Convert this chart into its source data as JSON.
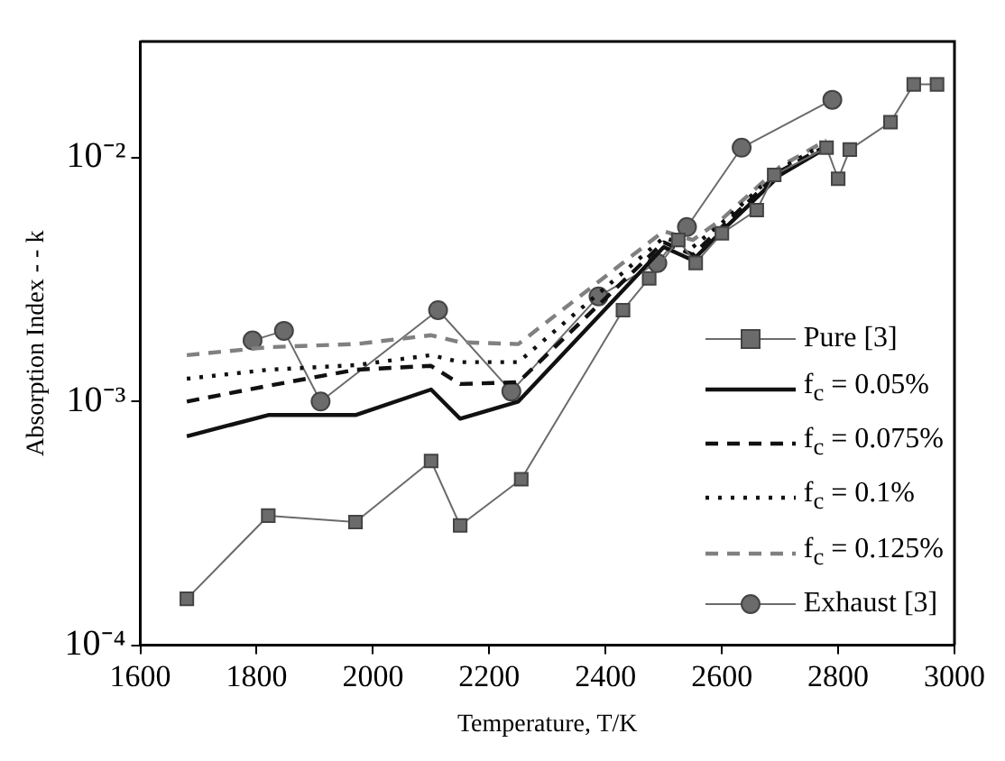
{
  "chart_data": {
    "type": "line",
    "xlabel": "Temperature, T/K",
    "ylabel": "Absorption Index - - k",
    "log": "y",
    "xlim": [
      1600,
      3000
    ],
    "xticks": [
      1600,
      1800,
      2000,
      2200,
      2400,
      2600,
      2800,
      3000
    ],
    "ylim": [
      0.0001,
      0.03
    ],
    "yticks": [
      {
        "value": 0.0001,
        "label": "10⁻⁴"
      },
      {
        "value": 0.001,
        "label": "10⁻³"
      },
      {
        "value": 0.01,
        "label": "10⁻²"
      }
    ],
    "legend": "right",
    "grid": false,
    "series": [
      {
        "name": "Pure [3]",
        "color": "#6b6b6b",
        "marker": "square",
        "line_style": "solid",
        "x": [
          1680,
          1820,
          1970,
          2100,
          2150,
          2255,
          2430,
          2475,
          2525,
          2555,
          2600,
          2660,
          2690,
          2780,
          2800,
          2820,
          2890,
          2930,
          2970
        ],
        "values": [
          0.000155,
          0.00034,
          0.00032,
          0.00057,
          0.00031,
          0.00048,
          0.00237,
          0.0032,
          0.0046,
          0.0037,
          0.0049,
          0.0061,
          0.0085,
          0.011,
          0.0082,
          0.0108,
          0.014,
          0.02,
          0.02
        ]
      },
      {
        "name": "f$_{c}$ = 0.05%",
        "color": "#111111",
        "marker": "none",
        "line_style": "solid",
        "x": [
          1680,
          1820,
          1970,
          2100,
          2150,
          2250,
          2500,
          2550,
          2600,
          2700,
          2780
        ],
        "values": [
          0.00072,
          0.00088,
          0.00088,
          0.00112,
          0.00085,
          0.001,
          0.0043,
          0.0038,
          0.005,
          0.0085,
          0.011
        ]
      },
      {
        "name": "f$_{c}$ = 0.075%",
        "color": "#111111",
        "marker": "none",
        "line_style": "dashed",
        "x": [
          1680,
          1820,
          1970,
          2100,
          2150,
          2250,
          2500,
          2550,
          2600,
          2700,
          2780
        ],
        "values": [
          0.001,
          0.00116,
          0.00135,
          0.0014,
          0.00118,
          0.0012,
          0.0045,
          0.004,
          0.0052,
          0.0088,
          0.0112
        ]
      },
      {
        "name": "f$_{c}$ = 0.1%",
        "color": "#111111",
        "marker": "none",
        "line_style": "dotted",
        "x": [
          1680,
          1820,
          1970,
          2100,
          2150,
          2250,
          2500,
          2550,
          2600,
          2700,
          2780
        ],
        "values": [
          0.00124,
          0.00135,
          0.00141,
          0.00155,
          0.00145,
          0.00145,
          0.0047,
          0.0043,
          0.0054,
          0.009,
          0.0115
        ]
      },
      {
        "name": "f$_{c}$ = 0.125%",
        "color": "#808080",
        "marker": "none",
        "line_style": "dashed",
        "x": [
          1680,
          1820,
          1970,
          2100,
          2150,
          2250,
          2500,
          2550,
          2600,
          2700,
          2780
        ],
        "values": [
          0.00155,
          0.00167,
          0.00172,
          0.00187,
          0.00175,
          0.00172,
          0.005,
          0.0046,
          0.0056,
          0.0092,
          0.0118
        ]
      },
      {
        "name": "Exhaust [3]",
        "color": "#6b6b6b",
        "marker": "circle",
        "line_style": "solid",
        "x": [
          1793,
          1847,
          1910,
          2112,
          2238,
          2388,
          2489,
          2540,
          2634,
          2790
        ],
        "values": [
          0.00178,
          0.00195,
          0.001,
          0.00237,
          0.0011,
          0.0027,
          0.0037,
          0.0052,
          0.011,
          0.0173
        ]
      }
    ]
  }
}
